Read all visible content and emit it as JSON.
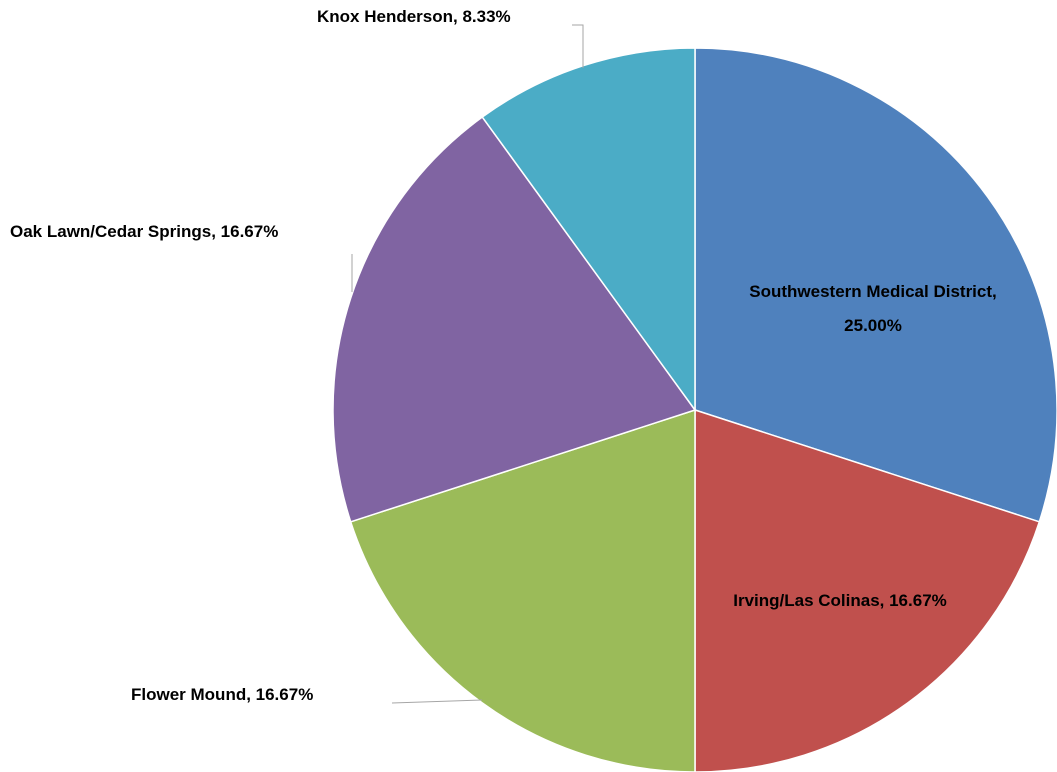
{
  "chart_data": {
    "type": "pie",
    "labels": [
      "Southwestern Medical District, 25.00%",
      "Irving/Las Colinas, 16.67%",
      "Flower Mound, 16.67%",
      "Oak Lawn/Cedar Springs, 16.67%",
      "Knox Henderson, 8.33%"
    ],
    "values": [
      25.0,
      16.67,
      16.67,
      16.67,
      8.33
    ],
    "colors": [
      "#4f81bd",
      "#c0504d",
      "#9bbb59",
      "#8064a2",
      "#4bacc6"
    ]
  }
}
